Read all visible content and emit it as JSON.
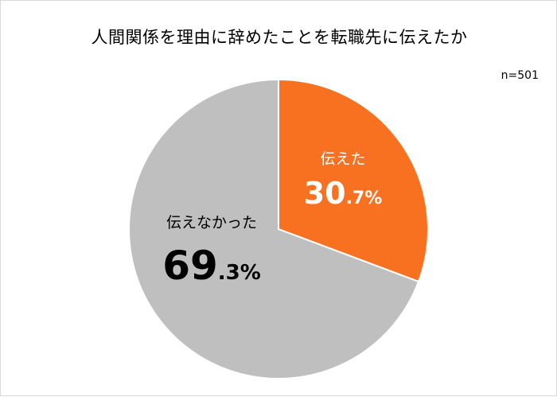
{
  "title": "人間関係を理由に辞めたことを転職先に伝えたか",
  "note": "n=501",
  "chart_data": {
    "type": "pie",
    "title": "人間関係を理由に辞めたことを転職先に伝えたか",
    "note": "n=501",
    "unit": "%",
    "slices": [
      {
        "label": "伝えた",
        "value": 30.7,
        "int": "30",
        "dec": ".7%",
        "color": "#f77120",
        "text_color": "#ffffff"
      },
      {
        "label": "伝えなかった",
        "value": 69.3,
        "int": "69",
        "dec": ".3%",
        "color": "#bfbfbf",
        "text_color": "#000000"
      }
    ],
    "start_angle_deg": 0,
    "direction": "clockwise"
  }
}
